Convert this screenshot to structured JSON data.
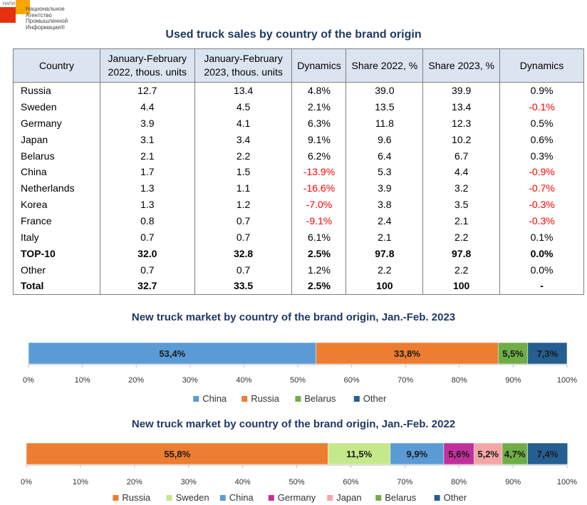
{
  "logo": {
    "abbr": "НАПИ",
    "lines": [
      "Национальное",
      "Агентство",
      "Промышленной",
      "Информации®"
    ]
  },
  "table": {
    "title": "Used truck sales by country of the brand origin",
    "headers": [
      "Country",
      "January-February 2022, thous. units",
      "January-February 2023, thous. units",
      "Dynamics",
      "Share 2022, %",
      "Share 2023, %",
      "Dynamics"
    ],
    "rows": [
      {
        "cells": [
          "Russia",
          "12.7",
          "13.4",
          "4.8%",
          "39.0",
          "39.9",
          "0.9%"
        ],
        "bold": false
      },
      {
        "cells": [
          "Sweden",
          "4.4",
          "4.5",
          "2.1%",
          "13.5",
          "13.4",
          "-0.1%"
        ],
        "bold": false
      },
      {
        "cells": [
          "Germany",
          "3.9",
          "4.1",
          "6.3%",
          "11.8",
          "12.3",
          "0.5%"
        ],
        "bold": false
      },
      {
        "cells": [
          "Japan",
          "3.1",
          "3.4",
          "9.1%",
          "9.6",
          "10.2",
          "0.6%"
        ],
        "bold": false
      },
      {
        "cells": [
          "Belarus",
          "2.1",
          "2.2",
          "6.2%",
          "6.4",
          "6.7",
          "0.3%"
        ],
        "bold": false
      },
      {
        "cells": [
          "China",
          "1.7",
          "1.5",
          "-13.9%",
          "5.3",
          "4.4",
          "-0.9%"
        ],
        "bold": false
      },
      {
        "cells": [
          "Netherlands",
          "1.3",
          "1.1",
          "-16.6%",
          "3.9",
          "3.2",
          "-0.7%"
        ],
        "bold": false
      },
      {
        "cells": [
          "Korea",
          "1.3",
          "1.2",
          "-7.0%",
          "3.8",
          "3.5",
          "-0.3%"
        ],
        "bold": false
      },
      {
        "cells": [
          "France",
          "0.8",
          "0.7",
          "-9.1%",
          "2.4",
          "2.1",
          "-0.3%"
        ],
        "bold": false
      },
      {
        "cells": [
          "Italy",
          "0.7",
          "0.7",
          "6.1%",
          "2.1",
          "2.2",
          "0.1%"
        ],
        "bold": false
      },
      {
        "cells": [
          "TOP-10",
          "32.0",
          "32.8",
          "2.5%",
          "97.8",
          "97.8",
          "0.0%"
        ],
        "bold": true
      },
      {
        "cells": [
          "Other",
          "0.7",
          "0.7",
          "1.2%",
          "2.2",
          "2.2",
          "0.0%"
        ],
        "bold": false
      },
      {
        "cells": [
          "Total",
          "32.7",
          "33.5",
          "2.5%",
          "100",
          "100",
          "-"
        ],
        "bold": true
      }
    ]
  },
  "colors": {
    "title": "#1f3864",
    "header_bg": "#dbe5f1",
    "negative": "#ff0000"
  },
  "chart_data": [
    {
      "type": "bar",
      "orientation": "horizontal-stacked-100",
      "title": "New truck market by country of the brand origin, Jan.-Feb. 2023",
      "xlim": [
        0,
        100
      ],
      "ticks": [
        "0%",
        "10%",
        "20%",
        "30%",
        "40%",
        "50%",
        "60%",
        "70%",
        "80%",
        "90%",
        "100%"
      ],
      "legend_position": "bottom",
      "series": [
        {
          "name": "China",
          "value": 53.4,
          "label": "53,4%",
          "color": "#5b9bd5"
        },
        {
          "name": "Russia",
          "value": 33.8,
          "label": "33,8%",
          "color": "#ed7d31"
        },
        {
          "name": "Belarus",
          "value": 5.5,
          "label": "5,5%",
          "color": "#70ad47"
        },
        {
          "name": "Other",
          "value": 7.3,
          "label": "7,3%",
          "color": "#255e91"
        }
      ]
    },
    {
      "type": "bar",
      "orientation": "horizontal-stacked-100",
      "title": "New truck market by country of the brand origin, Jan.-Feb. 2022",
      "xlim": [
        0,
        100
      ],
      "ticks": [
        "0%",
        "10%",
        "20%",
        "30%",
        "40%",
        "50%",
        "60%",
        "70%",
        "80%",
        "90%",
        "100%"
      ],
      "legend_position": "bottom",
      "series": [
        {
          "name": "Russia",
          "value": 55.8,
          "label": "55,8%",
          "color": "#ed7d31"
        },
        {
          "name": "Sweden",
          "value": 11.5,
          "label": "11,5%",
          "color": "#c5e88b"
        },
        {
          "name": "China",
          "value": 9.9,
          "label": "9,9%",
          "color": "#5b9bd5"
        },
        {
          "name": "Germany",
          "value": 5.6,
          "label": "5,6%",
          "color": "#c0309a"
        },
        {
          "name": "Japan",
          "value": 5.2,
          "label": "5,2%",
          "color": "#f4a6a6"
        },
        {
          "name": "Belarus",
          "value": 4.7,
          "label": "4,7%",
          "color": "#70ad47"
        },
        {
          "name": "Other",
          "value": 7.4,
          "label": "7,4%",
          "color": "#255e91"
        }
      ]
    }
  ]
}
